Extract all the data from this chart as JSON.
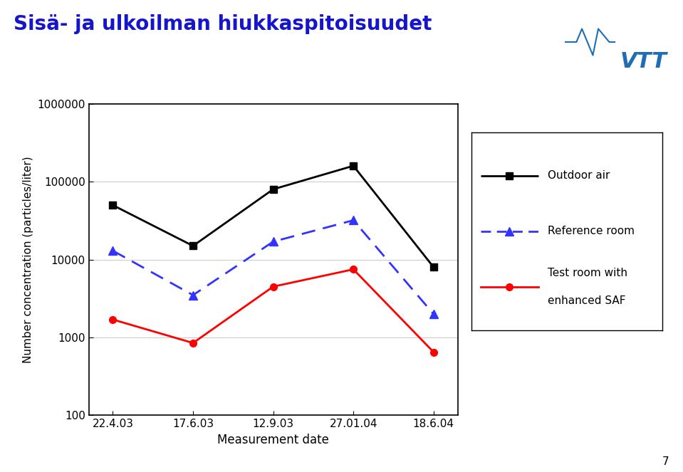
{
  "title": "Sisä- ja ulkoilman hiukkaspitoisuudet",
  "title_color": "#1515CC",
  "xlabel": "Measurement date",
  "ylabel": "Number concentration (particles/liter)",
  "x_labels": [
    "22.4.03",
    "17.6.03",
    "12.9.03",
    "27.01.04",
    "18.6.04"
  ],
  "outdoor_air": [
    50000,
    15000,
    80000,
    160000,
    8000
  ],
  "reference_room": [
    13000,
    3500,
    17000,
    32000,
    2000
  ],
  "test_room": [
    1700,
    850,
    4500,
    7500,
    650
  ],
  "outdoor_color": "#000000",
  "reference_color": "#3333FF",
  "test_color": "#FF0000",
  "ylim_min": 100,
  "ylim_max": 1000000,
  "ytick_vals": [
    100,
    1000,
    10000,
    100000,
    1000000
  ],
  "ytick_labels": [
    "100",
    "1000",
    "10000",
    "100000",
    "1000000"
  ],
  "legend_labels": [
    "Outdoor air",
    "Reference room",
    "Test room with\nenhanced SAF"
  ],
  "page_number": "7",
  "background_color": "#FFFFFF",
  "grid_color": "#CCCCCC"
}
